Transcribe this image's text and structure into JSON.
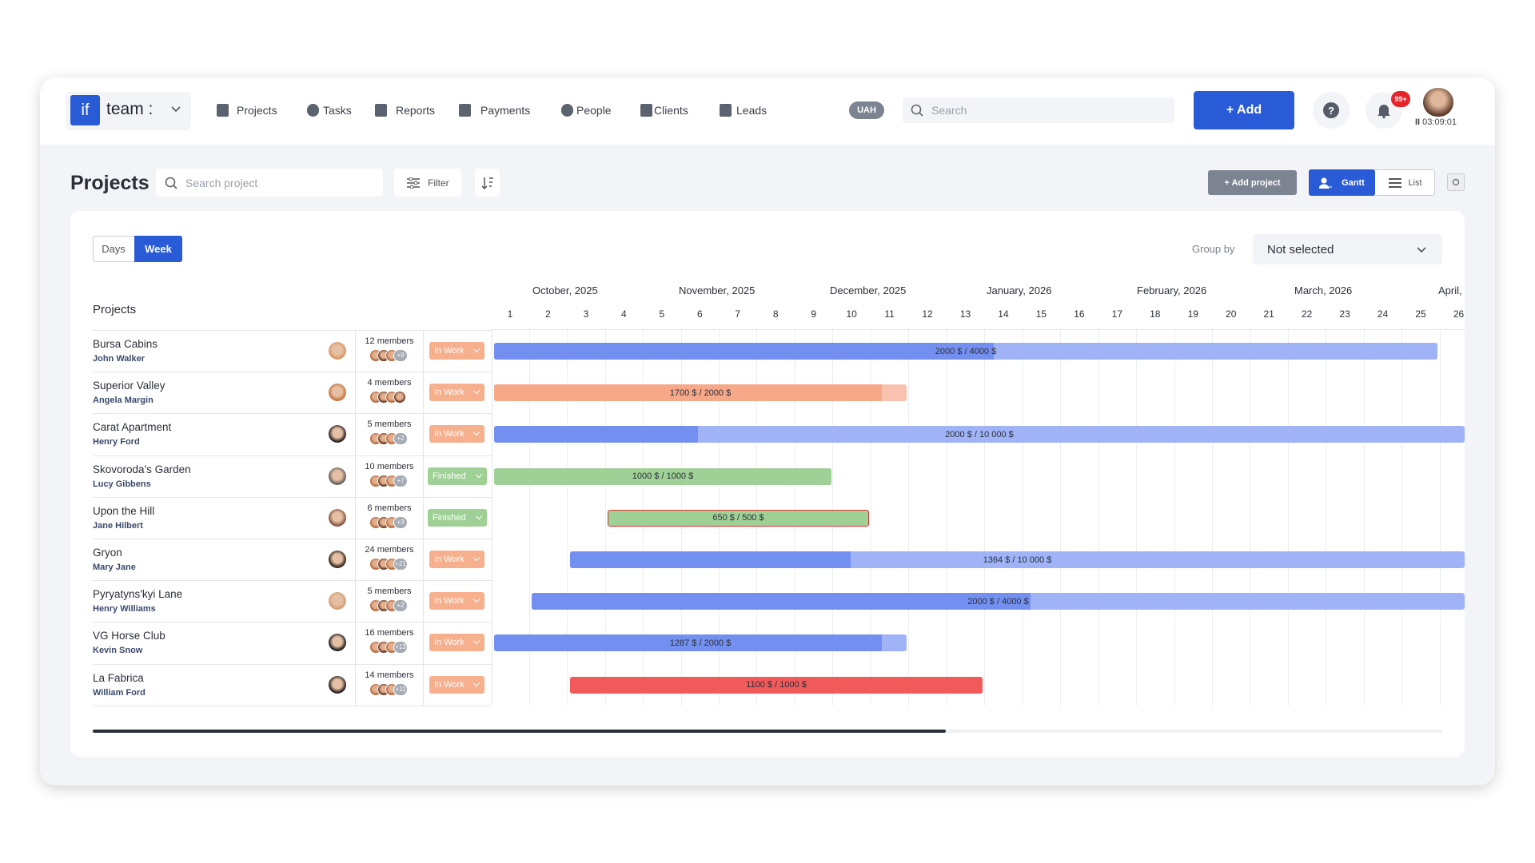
{
  "header": {
    "logo": "if",
    "workspace": "team :",
    "nav": [
      "Projects",
      "Tasks",
      "Reports",
      "Payments",
      "People",
      "Clients",
      "Leads"
    ],
    "currency": "UAH",
    "search_placeholder": "Search",
    "add_button": "+ Add",
    "notification_badge": "99+",
    "timer": "03:09:01"
  },
  "toolbar": {
    "title": "Projects",
    "search_placeholder": "Search project",
    "filter": "Filter",
    "add_project": "+ Add project",
    "views": [
      "Gantt",
      "List"
    ]
  },
  "gantt": {
    "scales": [
      "Days",
      "Week"
    ],
    "group_by_label": "Group by",
    "group_by_value": "Not selected",
    "column_header": "Projects",
    "months": [
      "October, 2025",
      "November, 2025",
      "December, 2025",
      "January, 2026",
      "February, 2026",
      "March, 2026",
      "April,"
    ],
    "weeks": [
      "1",
      "2",
      "3",
      "4",
      "5",
      "6",
      "7",
      "8",
      "9",
      "10",
      "11",
      "12",
      "13",
      "14",
      "15",
      "16",
      "17",
      "18",
      "19",
      "20",
      "21",
      "22",
      "23",
      "24",
      "25",
      "26"
    ],
    "rows": [
      {
        "name": "Bursa Cabins",
        "manager": "John Walker",
        "members": "12 members",
        "extra": "+9",
        "status": "In Work",
        "budget": "2000 $ / 4000 $"
      },
      {
        "name": "Superior Valley",
        "manager": "Angela Margin",
        "members": "4 members",
        "status": "In Work",
        "budget": "1700 $ / 2000 $"
      },
      {
        "name": "Carat Apartment",
        "manager": "Henry Ford",
        "members": "5 members",
        "extra": "+2",
        "status": "In Work",
        "budget": "2000 $ / 10 000 $"
      },
      {
        "name": "Skovoroda's Garden",
        "manager": "Lucy Gibbens",
        "members": "10 members",
        "extra": "+7",
        "status": "Finished",
        "budget": "1000 $ / 1000 $"
      },
      {
        "name": "Upon the Hill",
        "manager": "Jane Hilbert",
        "members": "6 members",
        "extra": "+3",
        "status": "Finished",
        "budget": "650 $ / 500 $"
      },
      {
        "name": "Gryon",
        "manager": "Mary Jane",
        "members": "24 members",
        "extra": "+21",
        "status": "In Work",
        "budget": "1364 $ / 10 000 $"
      },
      {
        "name": "Pyryatyns'kyi Lane",
        "manager": "Henry Williams",
        "members": "5 members",
        "extra": "+2",
        "status": "In Work",
        "budget": "2000 $ / 4000 $"
      },
      {
        "name": "VG Horse Club",
        "manager": "Kevin Snow",
        "members": "16 members",
        "extra": "+13",
        "status": "In Work",
        "budget": "1287 $ / 2000 $"
      },
      {
        "name": "La Fabrica",
        "manager": "William Ford",
        "members": "14 members",
        "extra": "+11",
        "status": "In Work",
        "budget": "1100 $ / 1000 $"
      }
    ]
  }
}
